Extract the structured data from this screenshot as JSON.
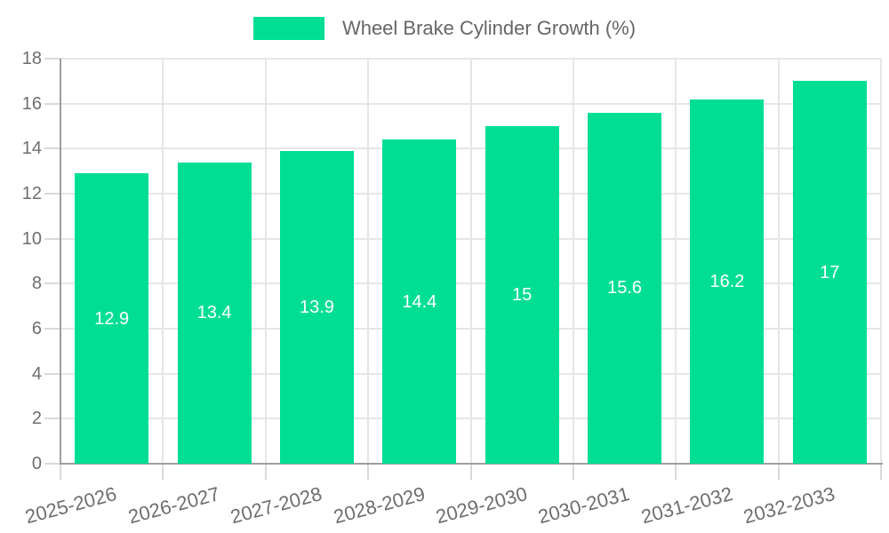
{
  "chart_data": {
    "type": "bar",
    "title": "Wheel Brake Cylinder Growth (%)",
    "categories": [
      "2025-2026",
      "2026-2027",
      "2027-2028",
      "2028-2029",
      "2029-2030",
      "2030-2031",
      "2031-2032",
      "2032-2033"
    ],
    "values": [
      12.9,
      13.4,
      13.9,
      14.4,
      15,
      15.6,
      16.2,
      17
    ],
    "value_labels": [
      "12.9",
      "13.4",
      "13.9",
      "14.4",
      "15",
      "15.6",
      "16.2",
      "17"
    ],
    "xlabel": "",
    "ylabel": "",
    "ylim": [
      0,
      18
    ],
    "ytick_step": 2,
    "ytick_labels": [
      "0",
      "2",
      "4",
      "6",
      "8",
      "10",
      "12",
      "14",
      "16",
      "18"
    ],
    "grid": true,
    "legend_position": "top",
    "colors": {
      "bar": "#00DE94",
      "value_label": "#FFFFFF",
      "axis_label": "#6E6E6E",
      "legend_text": "#666666",
      "gridline": "#E6E6E6",
      "tick": "#D9D9D9",
      "axis_line": "#9E9E9E",
      "background": "#FFFFFF"
    }
  }
}
